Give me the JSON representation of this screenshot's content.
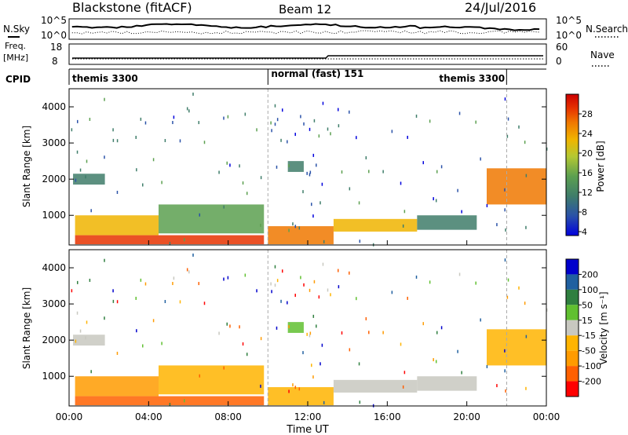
{
  "header": {
    "station": "Blackstone (fitACF)",
    "beam": "Beam 12",
    "date": "24/Jul/2016"
  },
  "noise_panel": {
    "left_label": "N.Sky",
    "right_label": "N.Search",
    "ticks_left": [
      "10^5",
      "10^0"
    ],
    "ticks_right": [
      "10^5",
      "10^0"
    ]
  },
  "freq_panel": {
    "left_label_1": "Freq.",
    "left_label_2": "[MHz]",
    "right_label": "Nave",
    "ticks_left": [
      "18",
      "8"
    ],
    "ticks_right": [
      "60",
      "0"
    ]
  },
  "cpid_panel": {
    "label": "CPID",
    "segments": [
      {
        "name": "themis 3300",
        "start_hour": 0.0,
        "end_hour": 10.0
      },
      {
        "name": "normal (fast) 151",
        "start_hour": 10.0,
        "end_hour": 22.0
      },
      {
        "name": "themis 3300",
        "start_hour": 22.0,
        "end_hour": 24.0
      }
    ]
  },
  "power_panel": {
    "ylabel": "Slant Range [km]",
    "cbar_label": "Power [dB]",
    "cbar_ticks": [
      "28",
      "24",
      "20",
      "16",
      "12",
      "8",
      "4"
    ]
  },
  "velocity_panel": {
    "ylabel": "Slant Range [km]",
    "cbar_label": "Velocity [m s⁻¹]",
    "cbar_ticks": [
      "200",
      "100",
      "50",
      "15",
      "-15",
      "-50",
      "-100",
      "-200"
    ]
  },
  "xaxis": {
    "label": "Time UT",
    "ticks": [
      "00:00",
      "04:00",
      "08:00",
      "12:00",
      "16:00",
      "20:00",
      "00:00"
    ]
  },
  "colors": {
    "power_scale": [
      "#0000dd",
      "#2a52a8",
      "#3f7d6a",
      "#5ca050",
      "#b4c832",
      "#f0b400",
      "#f07800",
      "#e63200",
      "#cc0000"
    ],
    "velocity_scale": [
      "#ff0000",
      "#ff6000",
      "#ff9b00",
      "#ffb400",
      "#c8c8c0",
      "#60c030",
      "#2f7f3f",
      "#2060a0",
      "#0000cc"
    ]
  },
  "chart_data": {
    "type": "heatmap",
    "x_unit": "hours UT",
    "xlim": [
      0,
      24
    ],
    "ylim": [
      180,
      4500
    ],
    "y_ticks": [
      1000,
      2000,
      3000,
      4000
    ],
    "beam": 12,
    "echo_regions": [
      {
        "t_start": 0.3,
        "t_end": 9.8,
        "r_min": 200,
        "r_max": 450,
        "power_db": 26,
        "velocity": -120
      },
      {
        "t_start": 0.3,
        "t_end": 4.5,
        "r_min": 450,
        "r_max": 1000,
        "power_db": 20,
        "velocity": -60
      },
      {
        "t_start": 4.5,
        "t_end": 9.8,
        "r_min": 500,
        "r_max": 1300,
        "power_db": 14,
        "velocity": -20
      },
      {
        "t_start": 0.2,
        "t_end": 1.8,
        "r_min": 1850,
        "r_max": 2150,
        "power_db": 10,
        "velocity": -10
      },
      {
        "t_start": 10.0,
        "t_end": 13.3,
        "r_min": 200,
        "r_max": 700,
        "power_db": 24,
        "velocity": -30
      },
      {
        "t_start": 13.3,
        "t_end": 17.5,
        "r_min": 550,
        "r_max": 900,
        "power_db": 18,
        "velocity": -10
      },
      {
        "t_start": 17.5,
        "t_end": 20.5,
        "r_min": 600,
        "r_max": 1000,
        "power_db": 9,
        "velocity": -5
      },
      {
        "t_start": 11.0,
        "t_end": 11.8,
        "r_min": 2200,
        "r_max": 2500,
        "power_db": 10,
        "velocity": 30
      },
      {
        "t_start": 21.0,
        "t_end": 24.0,
        "r_min": 1300,
        "r_max": 2300,
        "power_db": 22,
        "velocity": -40
      }
    ]
  }
}
